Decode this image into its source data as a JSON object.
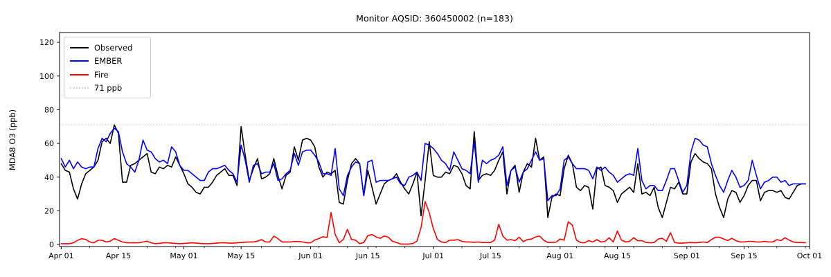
{
  "title": "Monitor AQSID: 360450002 (n=183)",
  "ylabel": "MDA8 O3 (ppb)",
  "legend": {
    "items": [
      {
        "label": "Observed",
        "color": "#000000",
        "style": "solid"
      },
      {
        "label": "EMBER",
        "color": "#0000ff",
        "style": "solid"
      },
      {
        "label": "Fire",
        "color": "#ff0000",
        "style": "solid"
      },
      {
        "label": "71 ppb",
        "color": "#d3d3d3",
        "style": "dotted"
      }
    ]
  },
  "chart_data": {
    "type": "line",
    "title": "Monitor AQSID: 360450002 (n=183)",
    "xlabel": "",
    "ylabel": "MDA8 O3 (ppb)",
    "x_unit": "days since Apr 01",
    "n_points": 183,
    "ylim": [
      -1.2,
      125.8
    ],
    "xlim_days": [
      -0.4,
      183
    ],
    "grid": false,
    "legend_position": "upper left",
    "y_ticks": [
      0,
      20,
      40,
      60,
      80,
      100,
      120
    ],
    "x_major_ticks": [
      {
        "day": 0,
        "label": "Apr 01"
      },
      {
        "day": 14,
        "label": "Apr 15"
      },
      {
        "day": 30,
        "label": "May 01"
      },
      {
        "day": 44,
        "label": "May 15"
      },
      {
        "day": 61,
        "label": "Jun 01"
      },
      {
        "day": 75,
        "label": "Jun 15"
      },
      {
        "day": 91,
        "label": "Jul 01"
      },
      {
        "day": 105,
        "label": "Jul 15"
      },
      {
        "day": 122,
        "label": "Aug 01"
      },
      {
        "day": 136,
        "label": "Aug 15"
      },
      {
        "day": 153,
        "label": "Sep 01"
      },
      {
        "day": 167,
        "label": "Sep 15"
      },
      {
        "day": 183,
        "label": "Oct 01"
      }
    ],
    "x_minor_tick_interval_days": 7,
    "reference_line": {
      "value": 71,
      "label": "71 ppb",
      "color": "#d3d3d3",
      "style": "dotted"
    },
    "series": [
      {
        "name": "Observed",
        "color": "#000000",
        "values": [
          48,
          44,
          43,
          33,
          27,
          36,
          42,
          44,
          46,
          50,
          61,
          63,
          60,
          71,
          66,
          37,
          37,
          47,
          48,
          50,
          52,
          54,
          43,
          42,
          46,
          45,
          47,
          46,
          52,
          47,
          42,
          36,
          34,
          31,
          30,
          34,
          34,
          37,
          41,
          43,
          45,
          41,
          41,
          35,
          70,
          53,
          38,
          45,
          51,
          39,
          40,
          42,
          51,
          41,
          33,
          41,
          43,
          58,
          50,
          62,
          63,
          62,
          58,
          46,
          40,
          43,
          42,
          44,
          25,
          24,
          38,
          48,
          51,
          48,
          29,
          44,
          34,
          24,
          30,
          36,
          38,
          39,
          42,
          37,
          33,
          30,
          36,
          43,
          17,
          38,
          61,
          41,
          40,
          40,
          43,
          42,
          47,
          46,
          42,
          35,
          33,
          67,
          38,
          41,
          42,
          41,
          44,
          50,
          55,
          30,
          44,
          47,
          31,
          43,
          48,
          46,
          63,
          50,
          52,
          16,
          28,
          30,
          29,
          45,
          53,
          48,
          34,
          32,
          35,
          34,
          21,
          45,
          46,
          35,
          34,
          32,
          25,
          30,
          32,
          34,
          31,
          48,
          30,
          31,
          29,
          34,
          22,
          16,
          25,
          34,
          33,
          37,
          30,
          30,
          49,
          54,
          51,
          49,
          48,
          45,
          30,
          22,
          16,
          27,
          32,
          31,
          25,
          29,
          35,
          38,
          38,
          26,
          31,
          32,
          32,
          31,
          32,
          28,
          27,
          31,
          35,
          36,
          36
        ]
      },
      {
        "name": "EMBER",
        "color": "#0000ff",
        "values": [
          51,
          46,
          50,
          45,
          49,
          46,
          45,
          46,
          46,
          57,
          63,
          61,
          66,
          69,
          67,
          55,
          48,
          46,
          43,
          50,
          62,
          56,
          55,
          51,
          49,
          50,
          48,
          58,
          55,
          47,
          44,
          44,
          42,
          40,
          38,
          38,
          43,
          45,
          45,
          46,
          47,
          44,
          42,
          37,
          59,
          50,
          37,
          47,
          48,
          42,
          43,
          43,
          48,
          38,
          39,
          42,
          44,
          54,
          47,
          55,
          56,
          56,
          53,
          49,
          42,
          42,
          41,
          57,
          33,
          29,
          41,
          46,
          49,
          48,
          29,
          49,
          50,
          37,
          38,
          38,
          38,
          39,
          40,
          36,
          35,
          40,
          41,
          43,
          38,
          60,
          59,
          57,
          54,
          50,
          48,
          44,
          55,
          50,
          45,
          44,
          42,
          61,
          37,
          50,
          48,
          50,
          51,
          53,
          58,
          35,
          44,
          46,
          37,
          43,
          45,
          50,
          55,
          50,
          51,
          26,
          29,
          29,
          33,
          50,
          52,
          48,
          45,
          45,
          45,
          44,
          39,
          46,
          44,
          46,
          43,
          41,
          37,
          39,
          41,
          42,
          41,
          57,
          38,
          33,
          35,
          35,
          32,
          32,
          38,
          45,
          45,
          38,
          31,
          35,
          55,
          63,
          62,
          59,
          58,
          48,
          41,
          35,
          31,
          38,
          44,
          40,
          34,
          35,
          38,
          50,
          41,
          33,
          37,
          38,
          40,
          40,
          37,
          38,
          35,
          36,
          36,
          36,
          36
        ]
      },
      {
        "name": "Fire",
        "color": "#ff0000",
        "values": [
          0.5,
          0.5,
          0.5,
          1,
          2.5,
          3.5,
          3,
          1.5,
          1,
          2.5,
          2.5,
          1.5,
          2,
          3.5,
          2.5,
          1.5,
          1,
          1,
          1,
          1,
          1.5,
          2,
          1,
          0.5,
          0.7,
          1,
          1,
          0.8,
          0.6,
          0.5,
          0.6,
          0.8,
          1,
          0.8,
          0.6,
          0.5,
          0.5,
          0.6,
          0.8,
          1,
          1,
          0.8,
          0.8,
          1,
          1.2,
          1.4,
          1.5,
          1.5,
          2,
          2.9,
          1.5,
          1.5,
          5,
          3.5,
          1.5,
          1.5,
          1.5,
          1.8,
          1.8,
          1.5,
          1,
          1,
          2.7,
          3.5,
          4.6,
          4.2,
          19,
          6,
          1,
          3,
          9,
          3,
          2.6,
          0.5,
          1.2,
          5.3,
          5.9,
          4.5,
          3.6,
          5.1,
          4.3,
          1.9,
          1.2,
          0.3,
          0.3,
          0.3,
          0.6,
          2,
          10,
          25.5,
          19,
          9.5,
          3,
          1.5,
          1.2,
          2.6,
          2.6,
          2.9,
          1.9,
          1.5,
          1.5,
          1.3,
          1.5,
          1.2,
          1.2,
          1.2,
          2.6,
          12,
          5,
          2.6,
          2.9,
          2.3,
          4.3,
          1.7,
          2.9,
          3.3,
          4.5,
          5,
          2.5,
          1.2,
          1.3,
          1.4,
          3.3,
          2.6,
          13.5,
          11.5,
          2.6,
          1.2,
          1,
          2.3,
          1.5,
          2.9,
          1.5,
          1.9,
          4,
          1.5,
          8,
          2.6,
          1.5,
          1.9,
          4,
          2.2,
          2.3,
          1.2,
          1,
          1.2,
          3.3,
          3.7,
          1.9,
          7,
          1.2,
          0.8,
          0.8,
          1,
          1.2,
          1,
          1.2,
          1.5,
          1.2,
          2.9,
          4.3,
          4.3,
          3.3,
          2.3,
          3.7,
          2.3,
          1.5,
          1.5,
          1.9,
          1.9,
          1.5,
          1.5,
          1.9,
          1.5,
          1.5,
          2.9,
          2.3,
          4,
          2.6,
          1.5,
          1.2,
          1.2,
          1
        ]
      }
    ]
  }
}
